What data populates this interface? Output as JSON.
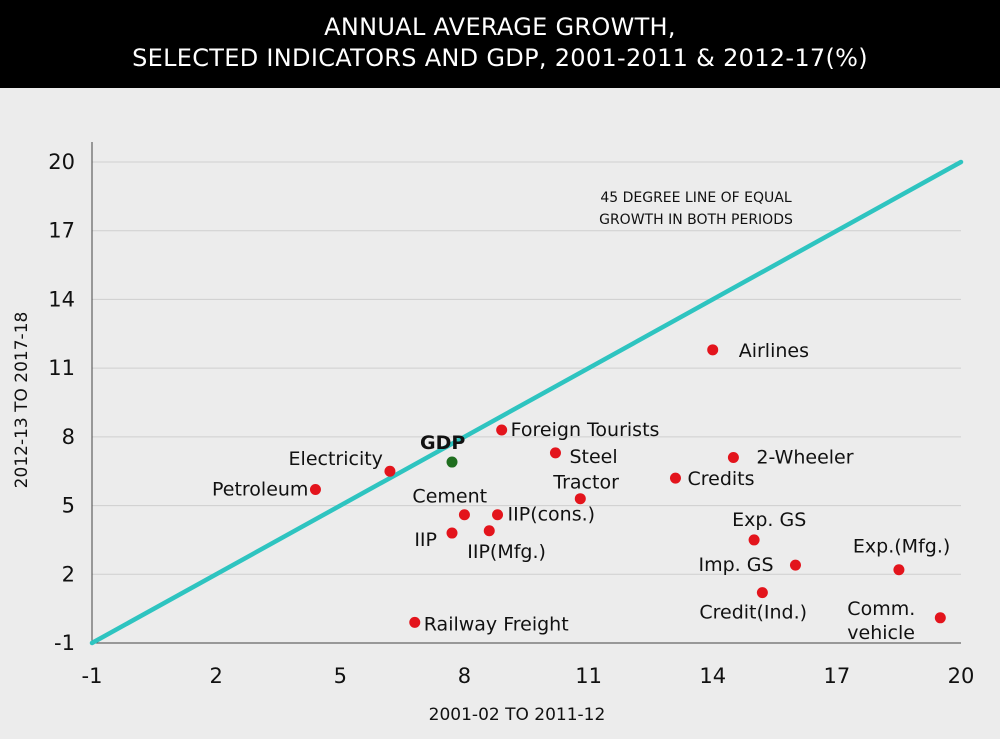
{
  "chart_data": {
    "type": "scatter",
    "title_line1": "ANNUAL  AVERAGE GROWTH,",
    "title_line2": "SELECTED INDICATORS AND GDP, 2001-2011 & 2012-17(%)",
    "xlabel": "2001-02 TO 2011-12",
    "ylabel": "2012-13 TO 2017-18",
    "xlim": [
      -1,
      20
    ],
    "ylim": [
      -1,
      20
    ],
    "xticks": [
      "-1",
      "2",
      "5",
      "8",
      "11",
      "14",
      "17",
      "20"
    ],
    "yticks": [
      "20",
      "17",
      "14",
      "11",
      "8",
      "5",
      "2",
      "-1"
    ],
    "grid": true,
    "reference_line": {
      "from": [
        -1,
        -1
      ],
      "to": [
        20,
        20
      ],
      "color": "#2ec4c0",
      "label_line1": "45 DEGREE LINE OF EQUAL",
      "label_line2": "GROWTH IN BOTH PERIODS"
    },
    "colors": {
      "point": "#e3141c",
      "gdp": "#1f6e1f"
    },
    "points": [
      {
        "label": "GDP",
        "x": 7.7,
        "y": 6.9,
        "highlight": true
      },
      {
        "label": "Electricity",
        "x": 6.2,
        "y": 6.5
      },
      {
        "label": "Petroleum",
        "x": 4.4,
        "y": 5.7
      },
      {
        "label": "Foreign Tourists",
        "x": 8.9,
        "y": 8.3
      },
      {
        "label": "Steel",
        "x": 10.2,
        "y": 7.3
      },
      {
        "label": "Tractor",
        "x": 10.8,
        "y": 5.3
      },
      {
        "label": "Credits",
        "x": 13.1,
        "y": 6.2
      },
      {
        "label": "2-Wheeler",
        "x": 14.5,
        "y": 7.1
      },
      {
        "label": "Airlines",
        "x": 14.0,
        "y": 11.8
      },
      {
        "label": "Cement",
        "x": 8.0,
        "y": 4.6
      },
      {
        "label": "IIP(cons.)",
        "x": 8.8,
        "y": 4.6
      },
      {
        "label": "IIP",
        "x": 7.7,
        "y": 3.8
      },
      {
        "label": "IIP(Mfg.)",
        "x": 8.6,
        "y": 3.9
      },
      {
        "label": "Exp. GS",
        "x": 15.0,
        "y": 3.5
      },
      {
        "label": "Imp. GS",
        "x": 16.0,
        "y": 2.4
      },
      {
        "label": "Exp.(Mfg.)",
        "x": 18.5,
        "y": 2.2
      },
      {
        "label": "Credit(Ind.)",
        "x": 15.2,
        "y": 1.2
      },
      {
        "label": "Comm.\nvehicle",
        "x": 19.5,
        "y": 0.1
      },
      {
        "label": "Railway Freight",
        "x": 6.8,
        "y": -0.1
      }
    ]
  }
}
